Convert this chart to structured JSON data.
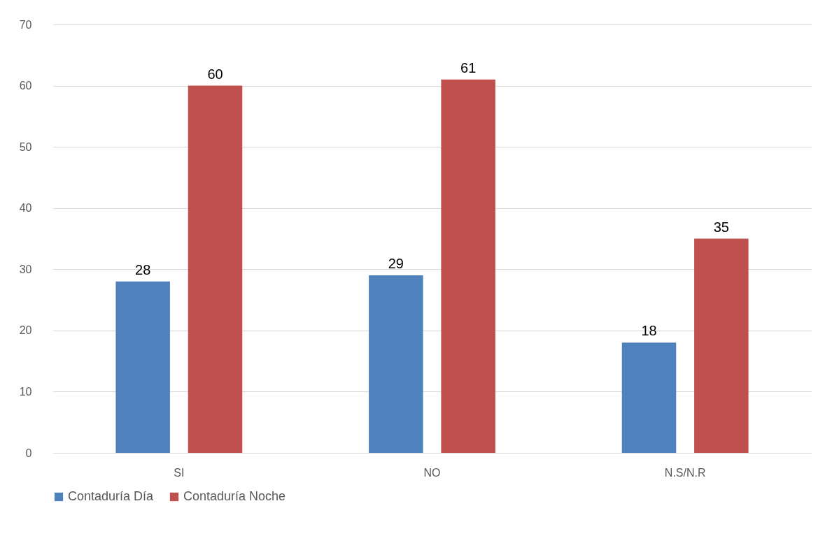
{
  "chart_data": {
    "type": "bar",
    "categories": [
      "SI",
      "NO",
      "N.S/N.R"
    ],
    "series": [
      {
        "name": "Contaduría Día",
        "color": "#4f81bd",
        "values": [
          28,
          29,
          18
        ]
      },
      {
        "name": "Contaduría Noche",
        "color": "#c0504d",
        "values": [
          60,
          61,
          35
        ]
      }
    ],
    "ylim": [
      0,
      70
    ],
    "yticks": [
      0,
      10,
      20,
      30,
      40,
      50,
      60,
      70
    ],
    "grid": "y",
    "legend": "bottom",
    "data_labels": true
  }
}
